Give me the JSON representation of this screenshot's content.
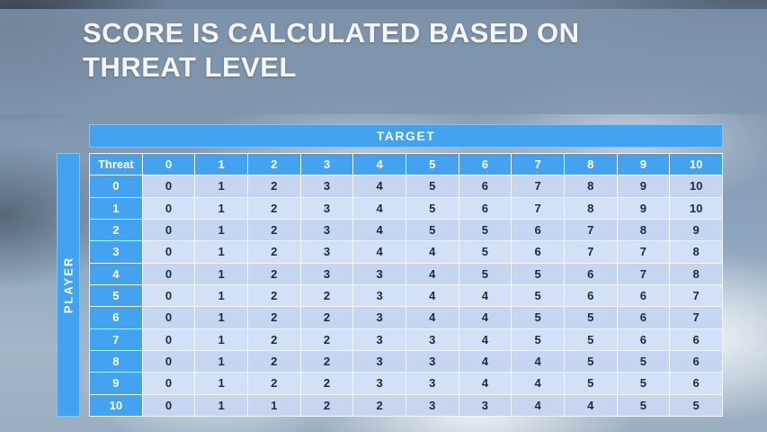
{
  "slide": {
    "title": "SCORE IS CALCULATED BASED ON THREAT LEVEL"
  },
  "colors": {
    "header_blue": "#44A3F0",
    "cell_light": "#D4E0F6",
    "cell_dark": "#C6D5F0",
    "title_text": "#F5F6F8",
    "body_text": "#1B2A3C"
  },
  "chart_data": {
    "type": "table",
    "title": "SCORE IS CALCULATED BASED ON THREAT LEVEL",
    "column_group_label": "TARGET",
    "row_group_label": "PLAYER",
    "corner_label": "Threat",
    "columns": [
      "0",
      "1",
      "2",
      "3",
      "4",
      "5",
      "6",
      "7",
      "8",
      "9",
      "10"
    ],
    "row_headers": [
      "0",
      "1",
      "2",
      "3",
      "4",
      "5",
      "6",
      "7",
      "8",
      "9",
      "10"
    ],
    "rows": [
      [
        0,
        1,
        2,
        3,
        4,
        5,
        6,
        7,
        8,
        9,
        10
      ],
      [
        0,
        1,
        2,
        3,
        4,
        5,
        6,
        7,
        8,
        9,
        10
      ],
      [
        0,
        1,
        2,
        3,
        4,
        5,
        5,
        6,
        7,
        8,
        9
      ],
      [
        0,
        1,
        2,
        3,
        4,
        4,
        5,
        6,
        7,
        7,
        8
      ],
      [
        0,
        1,
        2,
        3,
        3,
        4,
        5,
        5,
        6,
        7,
        8
      ],
      [
        0,
        1,
        2,
        2,
        3,
        4,
        4,
        5,
        6,
        6,
        7
      ],
      [
        0,
        1,
        2,
        2,
        3,
        4,
        4,
        5,
        5,
        6,
        7
      ],
      [
        0,
        1,
        2,
        2,
        3,
        3,
        4,
        5,
        5,
        6,
        6
      ],
      [
        0,
        1,
        2,
        2,
        3,
        3,
        4,
        4,
        5,
        5,
        6
      ],
      [
        0,
        1,
        2,
        2,
        3,
        3,
        4,
        4,
        5,
        5,
        6
      ],
      [
        0,
        1,
        1,
        2,
        2,
        3,
        3,
        4,
        4,
        5,
        5
      ]
    ]
  }
}
